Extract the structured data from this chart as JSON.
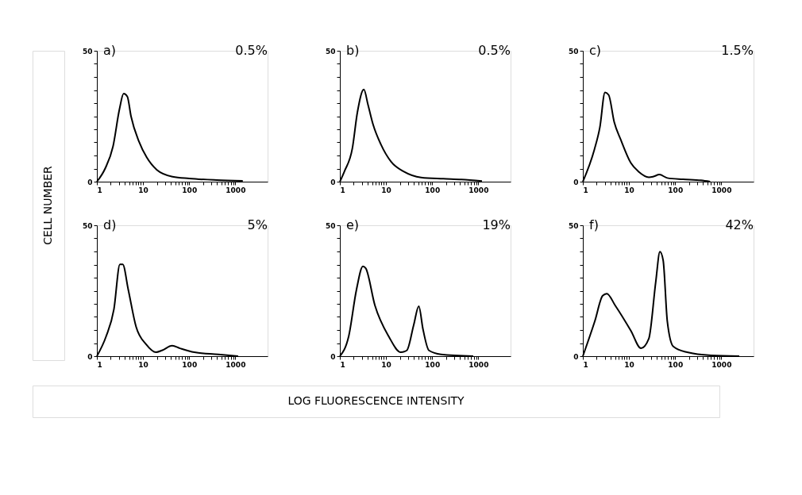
{
  "chart_data": [
    {
      "type": "line",
      "ylabel": "CELL NUMBER",
      "annotations": [
        "a)",
        "0.5%"
      ],
      "x": [
        1,
        1.51,
        2.24,
        3.09,
        3.8,
        4.57,
        5.5,
        8.13,
        12,
        20,
        43.7,
        100,
        398,
        1450
      ],
      "series": [
        {
          "color": "#000000",
          "values": [
            0,
            5,
            13.5,
            27.7,
            33.6,
            32.5,
            24.9,
            15.4,
            9.3,
            4.5,
            1.9,
            1.2,
            0.6,
            0.3
          ]
        }
      ],
      "xlim": [
        1,
        5000
      ],
      "xticks": [
        1,
        {
          "value": 2,
          "label": null
        },
        {
          "value": 3,
          "label": null
        },
        {
          "value": 4,
          "label": null
        },
        {
          "value": 5,
          "label": null
        },
        {
          "value": 6,
          "label": null
        },
        {
          "value": 7,
          "label": null
        },
        {
          "value": 8,
          "label": null
        },
        {
          "value": 9,
          "label": null
        },
        10,
        {
          "value": 20,
          "label": null
        },
        {
          "value": 30,
          "label": null
        },
        {
          "value": 40,
          "label": null
        },
        {
          "value": 50,
          "label": null
        },
        {
          "value": 60,
          "label": null
        },
        {
          "value": 70,
          "label": null
        },
        {
          "value": 80,
          "label": null
        },
        {
          "value": 90,
          "label": null
        },
        100,
        {
          "value": 200,
          "label": null
        },
        {
          "value": 300,
          "label": null
        },
        {
          "value": 400,
          "label": null
        },
        {
          "value": 500,
          "label": null
        },
        {
          "value": 600,
          "label": null
        },
        {
          "value": 700,
          "label": null
        },
        {
          "value": 800,
          "label": null
        },
        {
          "value": 900,
          "label": null
        },
        1000
      ],
      "ylim": [
        0,
        50
      ],
      "yticks": [
        0,
        {
          "value": 5,
          "label": null
        },
        {
          "value": 10,
          "label": null
        },
        {
          "value": 15,
          "label": null
        },
        {
          "value": 20,
          "label": null
        },
        {
          "value": 25,
          "label": null
        },
        {
          "value": 30,
          "label": null
        },
        {
          "value": 35,
          "label": null
        },
        {
          "value": 40,
          "label": null
        },
        {
          "value": 45,
          "label": null
        },
        50
      ],
      "log": "x",
      "grid": false
    },
    {
      "type": "line",
      "annotations": [
        "b)",
        "0.5%"
      ],
      "x": [
        1,
        1.26,
        1.86,
        2.4,
        3.31,
        4.07,
        5.25,
        7.76,
        12.9,
        24.5,
        57.5,
        174,
        427,
        1200
      ],
      "series": [
        {
          "color": "#000000",
          "values": [
            0,
            4,
            12.6,
            26.5,
            35.2,
            29.4,
            21.8,
            14.2,
            7.6,
            3.8,
            1.6,
            1.1,
            0.8,
            0.2
          ]
        }
      ],
      "xlim": [
        1,
        5000
      ],
      "xticks": [
        1,
        {
          "value": 2,
          "label": null
        },
        {
          "value": 3,
          "label": null
        },
        {
          "value": 4,
          "label": null
        },
        {
          "value": 5,
          "label": null
        },
        {
          "value": 6,
          "label": null
        },
        {
          "value": 7,
          "label": null
        },
        {
          "value": 8,
          "label": null
        },
        {
          "value": 9,
          "label": null
        },
        10,
        {
          "value": 20,
          "label": null
        },
        {
          "value": 30,
          "label": null
        },
        {
          "value": 40,
          "label": null
        },
        {
          "value": 50,
          "label": null
        },
        {
          "value": 60,
          "label": null
        },
        {
          "value": 70,
          "label": null
        },
        {
          "value": 80,
          "label": null
        },
        {
          "value": 90,
          "label": null
        },
        100,
        {
          "value": 200,
          "label": null
        },
        {
          "value": 300,
          "label": null
        },
        {
          "value": 400,
          "label": null
        },
        {
          "value": 500,
          "label": null
        },
        {
          "value": 600,
          "label": null
        },
        {
          "value": 700,
          "label": null
        },
        {
          "value": 800,
          "label": null
        },
        {
          "value": 900,
          "label": null
        },
        1000
      ],
      "ylim": [
        0,
        50
      ],
      "yticks": [
        0,
        {
          "value": 5,
          "label": null
        },
        {
          "value": 10,
          "label": null
        },
        {
          "value": 15,
          "label": null
        },
        {
          "value": 20,
          "label": null
        },
        {
          "value": 25,
          "label": null
        },
        {
          "value": 30,
          "label": null
        },
        {
          "value": 35,
          "label": null
        },
        {
          "value": 40,
          "label": null
        },
        {
          "value": 45,
          "label": null
        },
        50
      ],
      "log": "x",
      "grid": false
    },
    {
      "type": "line",
      "annotations": [
        "c)",
        "1.5%"
      ],
      "x": [
        1,
        1.78,
        2.34,
        3.02,
        3.63,
        4.79,
        6.61,
        11,
        16.2,
        26.9,
        33.1,
        45.7,
        67.6,
        148,
        363,
        575
      ],
      "series": [
        {
          "color": "#000000",
          "values": [
            0,
            12.3,
            20.8,
            34.1,
            33.1,
            22.7,
            16.1,
            7.1,
            3.8,
            1.7,
            1.9,
            2.7,
            1.4,
            0.9,
            0.5,
            0
          ]
        }
      ],
      "xlim": [
        1,
        5000
      ],
      "xticks": [
        1,
        {
          "value": 2,
          "label": null
        },
        {
          "value": 3,
          "label": null
        },
        {
          "value": 4,
          "label": null
        },
        {
          "value": 5,
          "label": null
        },
        {
          "value": 6,
          "label": null
        },
        {
          "value": 7,
          "label": null
        },
        {
          "value": 8,
          "label": null
        },
        {
          "value": 9,
          "label": null
        },
        10,
        {
          "value": 20,
          "label": null
        },
        {
          "value": 30,
          "label": null
        },
        {
          "value": 40,
          "label": null
        },
        {
          "value": 50,
          "label": null
        },
        {
          "value": 60,
          "label": null
        },
        {
          "value": 70,
          "label": null
        },
        {
          "value": 80,
          "label": null
        },
        {
          "value": 90,
          "label": null
        },
        100,
        {
          "value": 200,
          "label": null
        },
        {
          "value": 300,
          "label": null
        },
        {
          "value": 400,
          "label": null
        },
        {
          "value": 500,
          "label": null
        },
        {
          "value": 600,
          "label": null
        },
        {
          "value": 700,
          "label": null
        },
        {
          "value": 800,
          "label": null
        },
        {
          "value": 900,
          "label": null
        },
        1000
      ],
      "ylim": [
        0,
        50
      ],
      "yticks": [
        0,
        {
          "value": 5,
          "label": null
        },
        {
          "value": 10,
          "label": null
        },
        {
          "value": 15,
          "label": null
        },
        {
          "value": 20,
          "label": null
        },
        {
          "value": 25,
          "label": null
        },
        {
          "value": 30,
          "label": null
        },
        {
          "value": 35,
          "label": null
        },
        {
          "value": 40,
          "label": null
        },
        {
          "value": 45,
          "label": null
        },
        50
      ],
      "log": "x",
      "grid": false
    },
    {
      "type": "line",
      "annotations": [
        "d)",
        "5%"
      ],
      "x": [
        1,
        1.58,
        2.34,
        3.16,
        3.63,
        4.79,
        7.08,
        11.7,
        19.1,
        25.7,
        42.7,
        63.1,
        129,
        427,
        1150
      ],
      "series": [
        {
          "color": "#000000",
          "values": [
            0,
            7.5,
            17.9,
            35.1,
            35.1,
            25.4,
            11.2,
            4.5,
            1.5,
            2.2,
            4,
            3,
            1.5,
            0.7,
            0
          ]
        }
      ],
      "xlim": [
        1,
        5000
      ],
      "xticks": [
        1,
        {
          "value": 2,
          "label": null
        },
        {
          "value": 3,
          "label": null
        },
        {
          "value": 4,
          "label": null
        },
        {
          "value": 5,
          "label": null
        },
        {
          "value": 6,
          "label": null
        },
        {
          "value": 7,
          "label": null
        },
        {
          "value": 8,
          "label": null
        },
        {
          "value": 9,
          "label": null
        },
        10,
        {
          "value": 20,
          "label": null
        },
        {
          "value": 30,
          "label": null
        },
        {
          "value": 40,
          "label": null
        },
        {
          "value": 50,
          "label": null
        },
        {
          "value": 60,
          "label": null
        },
        {
          "value": 70,
          "label": null
        },
        {
          "value": 80,
          "label": null
        },
        {
          "value": 90,
          "label": null
        },
        100,
        {
          "value": 200,
          "label": null
        },
        {
          "value": 300,
          "label": null
        },
        {
          "value": 400,
          "label": null
        },
        {
          "value": 500,
          "label": null
        },
        {
          "value": 600,
          "label": null
        },
        {
          "value": 700,
          "label": null
        },
        {
          "value": 800,
          "label": null
        },
        {
          "value": 900,
          "label": null
        },
        1000
      ],
      "ylim": [
        0,
        50
      ],
      "yticks": [
        0,
        {
          "value": 5,
          "label": null
        },
        {
          "value": 10,
          "label": null
        },
        {
          "value": 15,
          "label": null
        },
        {
          "value": 20,
          "label": null
        },
        {
          "value": 25,
          "label": null
        },
        {
          "value": 30,
          "label": null
        },
        {
          "value": 35,
          "label": null
        },
        {
          "value": 40,
          "label": null
        },
        {
          "value": 45,
          "label": null
        },
        50
      ],
      "log": "x",
      "grid": false
    },
    {
      "type": "line",
      "xlabel": "LOG FLUORESCENCE INTENSITY",
      "annotations": [
        "e)",
        "19%"
      ],
      "x": [
        1,
        1.55,
        2.29,
        3.16,
        3.63,
        5.75,
        11.5,
        20.9,
        28.2,
        39.8,
        51.3,
        63.1,
        85.1,
        155,
        776
      ],
      "series": [
        {
          "color": "#000000",
          "values": [
            0,
            7.5,
            25.4,
            34.3,
            33.6,
            19.4,
            7.5,
            1.5,
            2.2,
            11.9,
            19.1,
            10.4,
            2.2,
            0.7,
            0
          ]
        }
      ],
      "xlim": [
        1,
        5000
      ],
      "xticks": [
        1,
        {
          "value": 2,
          "label": null
        },
        {
          "value": 3,
          "label": null
        },
        {
          "value": 4,
          "label": null
        },
        {
          "value": 5,
          "label": null
        },
        {
          "value": 6,
          "label": null
        },
        {
          "value": 7,
          "label": null
        },
        {
          "value": 8,
          "label": null
        },
        {
          "value": 9,
          "label": null
        },
        10,
        {
          "value": 20,
          "label": null
        },
        {
          "value": 30,
          "label": null
        },
        {
          "value": 40,
          "label": null
        },
        {
          "value": 50,
          "label": null
        },
        {
          "value": 60,
          "label": null
        },
        {
          "value": 70,
          "label": null
        },
        {
          "value": 80,
          "label": null
        },
        {
          "value": 90,
          "label": null
        },
        100,
        {
          "value": 200,
          "label": null
        },
        {
          "value": 300,
          "label": null
        },
        {
          "value": 400,
          "label": null
        },
        {
          "value": 500,
          "label": null
        },
        {
          "value": 600,
          "label": null
        },
        {
          "value": 700,
          "label": null
        },
        {
          "value": 800,
          "label": null
        },
        {
          "value": 900,
          "label": null
        },
        1000
      ],
      "ylim": [
        0,
        50
      ],
      "yticks": [
        0,
        {
          "value": 5,
          "label": null
        },
        {
          "value": 10,
          "label": null
        },
        {
          "value": 15,
          "label": null
        },
        {
          "value": 20,
          "label": null
        },
        {
          "value": 25,
          "label": null
        },
        {
          "value": 30,
          "label": null
        },
        {
          "value": 35,
          "label": null
        },
        {
          "value": 40,
          "label": null
        },
        {
          "value": 45,
          "label": null
        },
        50
      ],
      "log": "x",
      "grid": false
    },
    {
      "type": "line",
      "annotations": [
        "f)",
        "42%"
      ],
      "x": [
        1,
        1.82,
        2.69,
        3.31,
        5.01,
        11,
        18.2,
        26.9,
        38,
        46.8,
        55,
        67.6,
        91.2,
        182,
        603,
        2450
      ],
      "series": [
        {
          "color": "#000000",
          "values": [
            0,
            13.4,
            23.1,
            23.9,
            19.4,
            9.7,
            3,
            6.7,
            28.4,
            39.9,
            36.6,
            13.4,
            3.7,
            1.5,
            0.3,
            0
          ]
        }
      ],
      "xlim": [
        1,
        5000
      ],
      "xticks": [
        1,
        {
          "value": 2,
          "label": null
        },
        {
          "value": 3,
          "label": null
        },
        {
          "value": 4,
          "label": null
        },
        {
          "value": 5,
          "label": null
        },
        {
          "value": 6,
          "label": null
        },
        {
          "value": 7,
          "label": null
        },
        {
          "value": 8,
          "label": null
        },
        {
          "value": 9,
          "label": null
        },
        10,
        {
          "value": 20,
          "label": null
        },
        {
          "value": 30,
          "label": null
        },
        {
          "value": 40,
          "label": null
        },
        {
          "value": 50,
          "label": null
        },
        {
          "value": 60,
          "label": null
        },
        {
          "value": 70,
          "label": null
        },
        {
          "value": 80,
          "label": null
        },
        {
          "value": 90,
          "label": null
        },
        100,
        {
          "value": 200,
          "label": null
        },
        {
          "value": 300,
          "label": null
        },
        {
          "value": 400,
          "label": null
        },
        {
          "value": 500,
          "label": null
        },
        {
          "value": 600,
          "label": null
        },
        {
          "value": 700,
          "label": null
        },
        {
          "value": 800,
          "label": null
        },
        {
          "value": 900,
          "label": null
        },
        1000
      ],
      "ylim": [
        0,
        50
      ],
      "yticks": [
        0,
        {
          "value": 5,
          "label": null
        },
        {
          "value": 10,
          "label": null
        },
        {
          "value": 15,
          "label": null
        },
        {
          "value": 20,
          "label": null
        },
        {
          "value": 25,
          "label": null
        },
        {
          "value": 30,
          "label": null
        },
        {
          "value": 35,
          "label": null
        },
        {
          "value": 40,
          "label": null
        },
        {
          "value": 45,
          "label": null
        },
        50
      ],
      "log": "x",
      "grid": false
    }
  ]
}
